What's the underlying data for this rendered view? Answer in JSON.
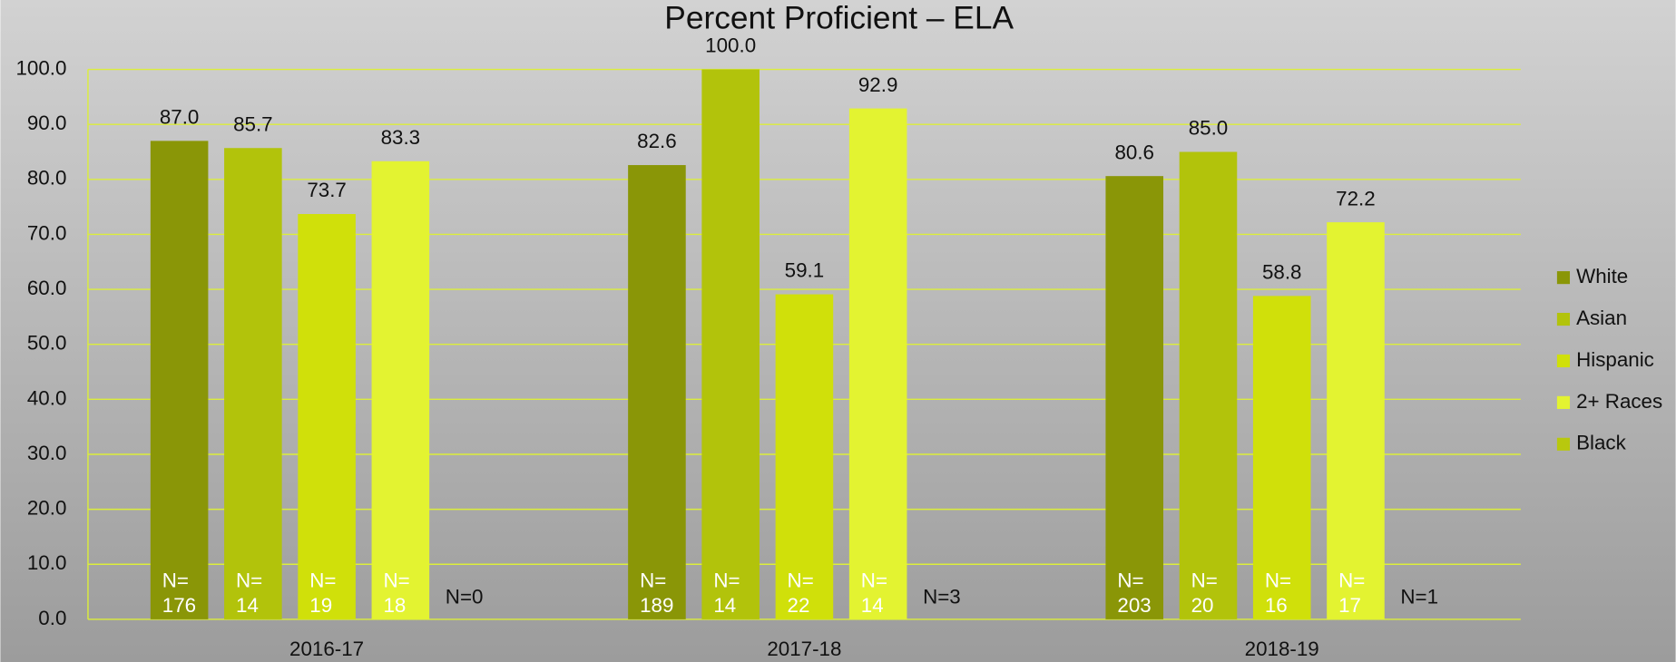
{
  "chart_data": {
    "type": "bar",
    "title": "Percent Proficient – ELA",
    "categories": [
      "2016-17",
      "2017-18",
      "2018-19"
    ],
    "series": [
      {
        "name": "White",
        "color": "#8a9607",
        "values": [
          87.0,
          82.6,
          80.6
        ],
        "value_labels": [
          "87.0",
          "82.6",
          "80.6"
        ],
        "n_labels": [
          [
            "N=",
            "176"
          ],
          [
            "N=",
            "189"
          ],
          [
            "N=",
            "203"
          ]
        ]
      },
      {
        "name": "Asian",
        "color": "#b2c30b",
        "values": [
          85.7,
          100.0,
          85.0
        ],
        "value_labels": [
          "85.7",
          "100.0",
          "85.0"
        ],
        "n_labels": [
          [
            "N=",
            "14"
          ],
          [
            "N=",
            "14"
          ],
          [
            "N=",
            "20"
          ]
        ]
      },
      {
        "name": "Hispanic",
        "color": "#d0e00a",
        "values": [
          73.7,
          59.1,
          58.8
        ],
        "value_labels": [
          "73.7",
          "59.1",
          "58.8"
        ],
        "n_labels": [
          [
            "N=",
            "19"
          ],
          [
            "N=",
            "22"
          ],
          [
            "N=",
            "16"
          ]
        ]
      },
      {
        "name": "2+ Races",
        "color": "#e3f331",
        "values": [
          83.3,
          92.9,
          72.2
        ],
        "value_labels": [
          "83.3",
          "92.9",
          "72.2"
        ],
        "n_labels": [
          [
            "N=",
            "18"
          ],
          [
            "N=",
            "14"
          ],
          [
            "N=",
            "17"
          ]
        ]
      },
      {
        "name": "Black",
        "color": "#b8c80e",
        "values": [
          null,
          null,
          null
        ],
        "n_labels": [
          [
            "N=0"
          ],
          [
            "N=3"
          ],
          [
            "N=1"
          ]
        ]
      }
    ],
    "ylim": [
      0,
      100
    ],
    "yticks": [
      {
        "value": 0,
        "label": "0.0"
      },
      {
        "value": 10,
        "label": "10.0"
      },
      {
        "value": 20,
        "label": "20.0"
      },
      {
        "value": 30,
        "label": "30.0"
      },
      {
        "value": 40,
        "label": "40.0"
      },
      {
        "value": 50,
        "label": "50.0"
      },
      {
        "value": 60,
        "label": "60.0"
      },
      {
        "value": 70,
        "label": "70.0"
      },
      {
        "value": 80,
        "label": "80.0"
      },
      {
        "value": 90,
        "label": "90.0"
      },
      {
        "value": 100,
        "label": "100.0"
      }
    ],
    "grid": true,
    "legend": "right"
  }
}
